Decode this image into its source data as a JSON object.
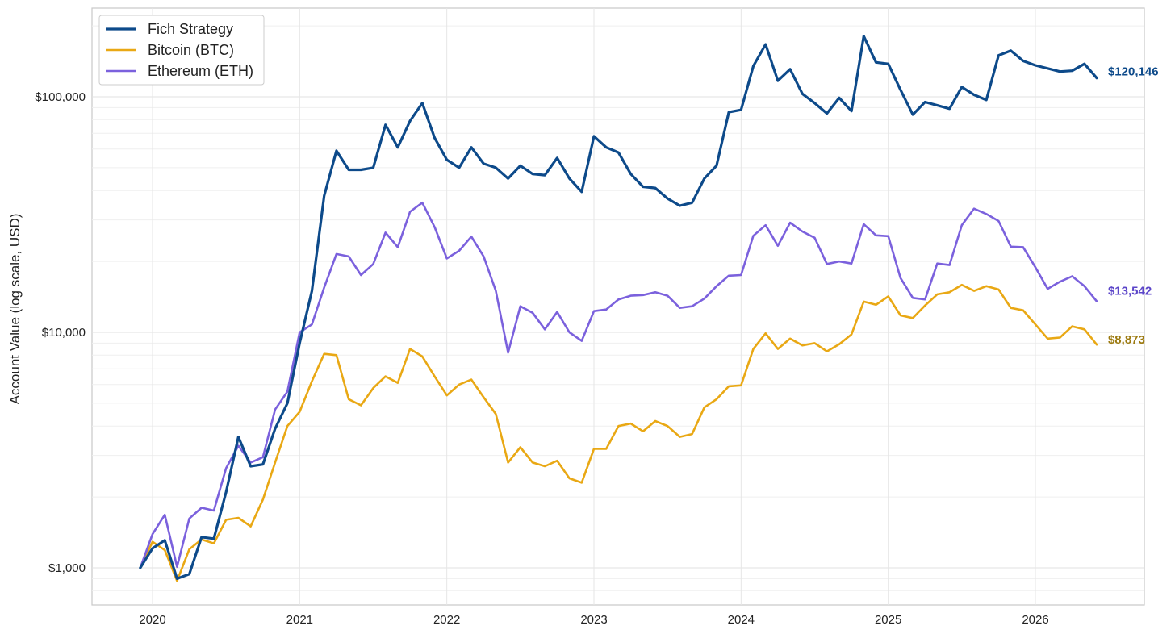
{
  "chart_data": {
    "type": "line",
    "title": "",
    "xlabel": "",
    "ylabel": "Account Value (log scale, USD)",
    "y_scale": "log",
    "ylim": [
      700,
      200000
    ],
    "xlim": [
      "2019-08",
      "2026-11"
    ],
    "grid": true,
    "legend_position": "top-left",
    "y_ticks": [
      {
        "value": 1000,
        "label": "$1,000"
      },
      {
        "value": 10000,
        "label": "$10,000"
      },
      {
        "value": 100000,
        "label": "$100,000"
      }
    ],
    "x_ticks": [
      {
        "value": "2020-01",
        "label": "2020"
      },
      {
        "value": "2021-01",
        "label": "2021"
      },
      {
        "value": "2022-01",
        "label": "2022"
      },
      {
        "value": "2023-01",
        "label": "2023"
      },
      {
        "value": "2024-01",
        "label": "2024"
      },
      {
        "value": "2025-01",
        "label": "2025"
      },
      {
        "value": "2026-01",
        "label": "2026"
      }
    ],
    "x": [
      "2019-12",
      "2020-01",
      "2020-02",
      "2020-03",
      "2020-04",
      "2020-05",
      "2020-06",
      "2020-07",
      "2020-08",
      "2020-09",
      "2020-10",
      "2020-11",
      "2020-12",
      "2021-01",
      "2021-02",
      "2021-03",
      "2021-04",
      "2021-05",
      "2021-06",
      "2021-07",
      "2021-08",
      "2021-09",
      "2021-10",
      "2021-11",
      "2021-12",
      "2022-01",
      "2022-02",
      "2022-03",
      "2022-04",
      "2022-05",
      "2022-06",
      "2022-07",
      "2022-08",
      "2022-09",
      "2022-10",
      "2022-11",
      "2022-12",
      "2023-01",
      "2023-02",
      "2023-03",
      "2023-04",
      "2023-05",
      "2023-06",
      "2023-07",
      "2023-08",
      "2023-09",
      "2023-10",
      "2023-11",
      "2023-12",
      "2024-01",
      "2024-02",
      "2024-03",
      "2024-04",
      "2024-05",
      "2024-06",
      "2024-07",
      "2024-08",
      "2024-09",
      "2024-10",
      "2024-11",
      "2024-12",
      "2025-01",
      "2025-02",
      "2025-03",
      "2025-04",
      "2025-05",
      "2025-06",
      "2025-07",
      "2025-08",
      "2025-09",
      "2025-10",
      "2025-11",
      "2025-12",
      "2026-01",
      "2026-02",
      "2026-03",
      "2026-04",
      "2026-05",
      "2026-06"
    ],
    "series": [
      {
        "name": "Fich Strategy",
        "color": "#0d4a8a",
        "end_label": "$120,146",
        "values": [
          1000,
          1210,
          1310,
          900,
          940,
          1350,
          1330,
          2100,
          3600,
          2700,
          2750,
          3900,
          5000,
          9000,
          15000,
          38000,
          59000,
          49000,
          49000,
          50000,
          76000,
          61000,
          79000,
          94000,
          67000,
          54000,
          50000,
          61000,
          52000,
          50000,
          45000,
          51000,
          47000,
          46500,
          55000,
          45000,
          39500,
          68000,
          61000,
          58000,
          47000,
          41500,
          41000,
          37000,
          34500,
          35500,
          45000,
          51000,
          86000,
          88000,
          135000,
          167000,
          117000,
          131000,
          103000,
          94000,
          85000,
          99000,
          87000,
          181000,
          140000,
          138000,
          107000,
          84000,
          95000,
          92000,
          89000,
          110000,
          102000,
          97000,
          150000,
          157000,
          142000,
          136000,
          132000,
          128000,
          129000,
          138000,
          120146
        ]
      },
      {
        "name": "Bitcoin (BTC)",
        "color": "#e9a814",
        "end_label": "$8,873",
        "values": [
          1000,
          1290,
          1190,
          880,
          1200,
          1320,
          1270,
          1600,
          1630,
          1500,
          1950,
          2800,
          4000,
          4600,
          6200,
          8100,
          8000,
          5200,
          4900,
          5800,
          6500,
          6100,
          8500,
          7900,
          6500,
          5400,
          6000,
          6300,
          5300,
          4500,
          2800,
          3250,
          2800,
          2700,
          2850,
          2400,
          2300,
          3200,
          3200,
          4000,
          4100,
          3800,
          4200,
          4000,
          3600,
          3700,
          4800,
          5200,
          5900,
          5950,
          8500,
          9900,
          8500,
          9400,
          8800,
          9000,
          8300,
          8900,
          9800,
          13500,
          13100,
          14200,
          11800,
          11500,
          13000,
          14500,
          14800,
          15900,
          15000,
          15700,
          15200,
          12700,
          12400,
          10800,
          9400,
          9500,
          10600,
          10300,
          8873
        ]
      },
      {
        "name": "Ethereum (ETH)",
        "color": "#7b61dd",
        "end_label": "$13,542",
        "values": [
          1000,
          1390,
          1680,
          1010,
          1620,
          1800,
          1750,
          2650,
          3300,
          2800,
          2950,
          4700,
          5600,
          10000,
          10800,
          15500,
          21500,
          21000,
          17500,
          19500,
          26500,
          23000,
          32500,
          35500,
          28000,
          20600,
          22200,
          25500,
          21000,
          15000,
          8200,
          12900,
          12100,
          10300,
          12200,
          10000,
          9200,
          12300,
          12500,
          13800,
          14300,
          14400,
          14800,
          14300,
          12700,
          12900,
          13900,
          15700,
          17400,
          17500,
          25700,
          28500,
          23300,
          29200,
          26800,
          25200,
          19500,
          20000,
          19600,
          28800,
          25800,
          25600,
          17000,
          14000,
          13800,
          19600,
          19300,
          28500,
          33500,
          31800,
          29700,
          23100,
          23000,
          18900,
          15300,
          16400,
          17300,
          15700,
          13542
        ]
      }
    ]
  }
}
